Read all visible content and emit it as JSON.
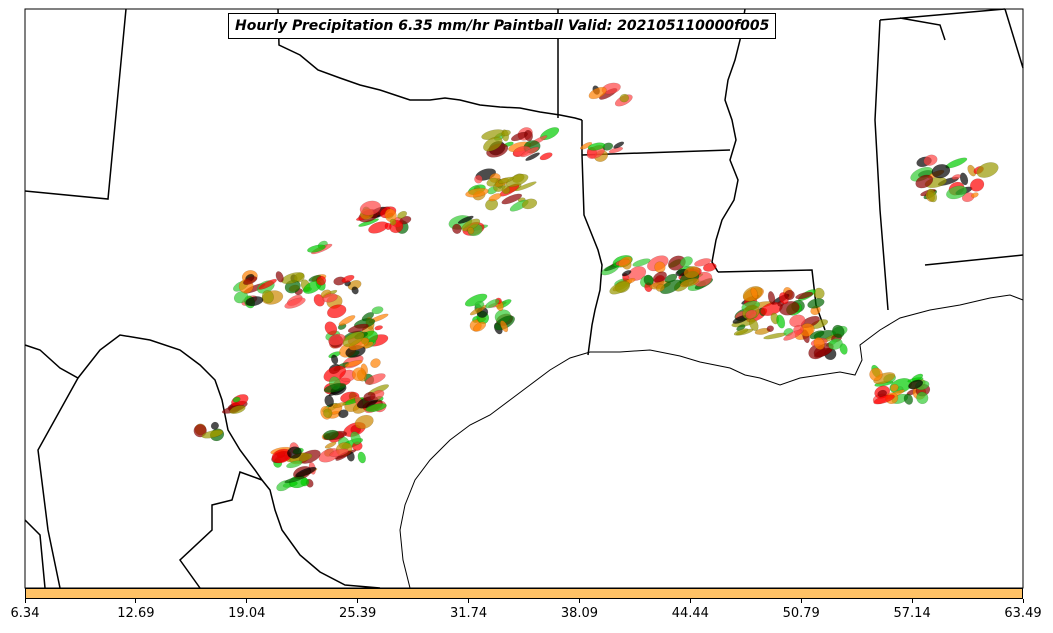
{
  "title": "Hourly Precipitation 6.35 mm/hr Paintball Valid: 202105110000f005",
  "colorbar": {
    "color": "#ffc266",
    "tick_labels": [
      "6.34",
      "12.69",
      "19.04",
      "25.39",
      "31.74",
      "38.09",
      "44.44",
      "50.79",
      "57.14",
      "63.49"
    ]
  },
  "member_colors": [
    "#ff0000",
    "#ff8000",
    "#00cc00",
    "#999900",
    "#006600",
    "#8b0000",
    "#000000",
    "#ff4444",
    "#cc8800",
    "#33cc33"
  ]
}
